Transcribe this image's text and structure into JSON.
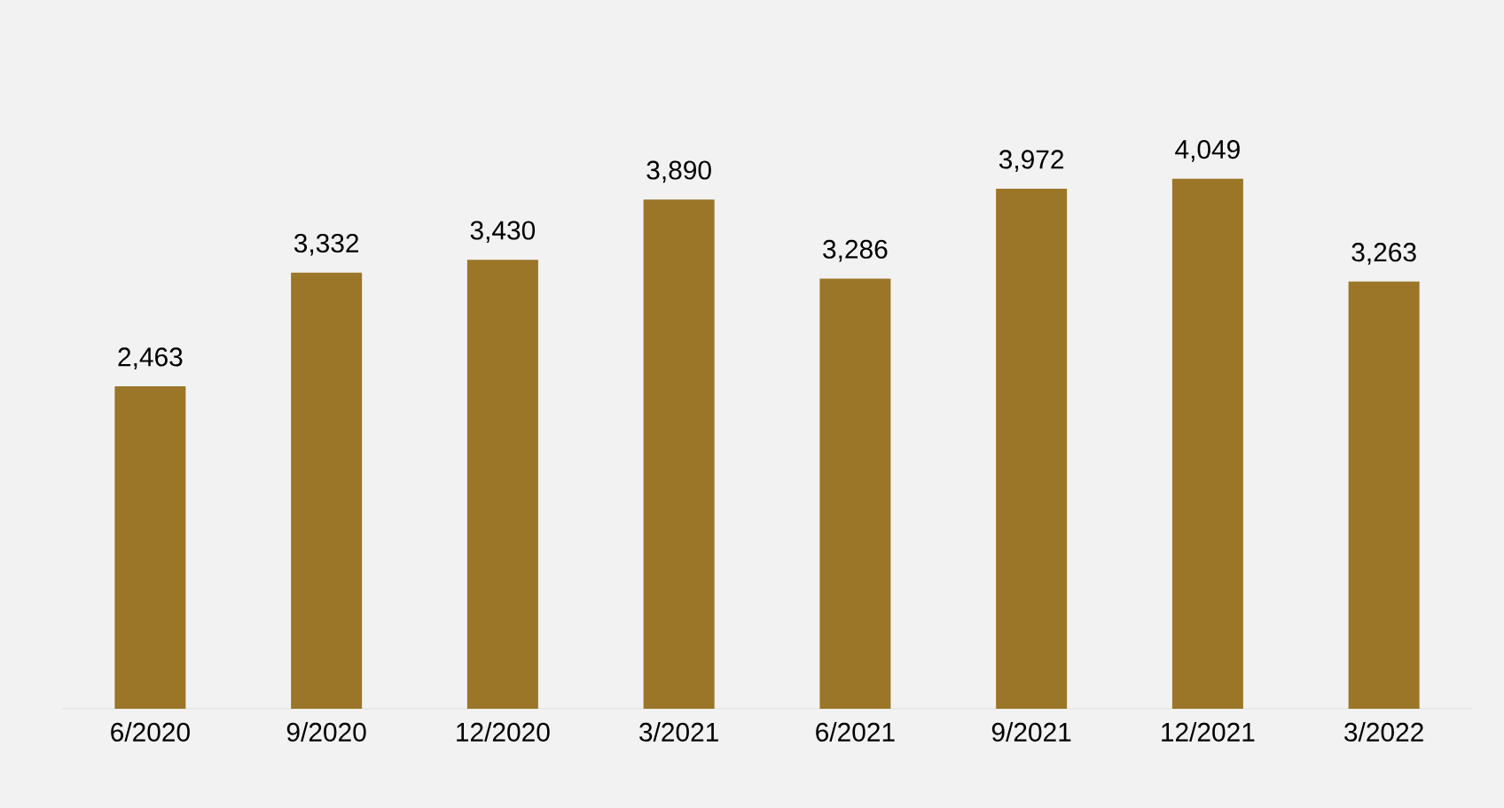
{
  "chart_data": {
    "type": "bar",
    "categories": [
      "6/2020",
      "9/2020",
      "12/2020",
      "3/2021",
      "6/2021",
      "9/2021",
      "12/2021",
      "3/2022"
    ],
    "values": [
      2463,
      3332,
      3430,
      3890,
      3286,
      3972,
      4049,
      3263
    ],
    "value_labels": [
      "2,463",
      "3,332",
      "3,430",
      "3,890",
      "3,286",
      "3,972",
      "4,049",
      "3,263"
    ],
    "color": "#9b7628"
  }
}
